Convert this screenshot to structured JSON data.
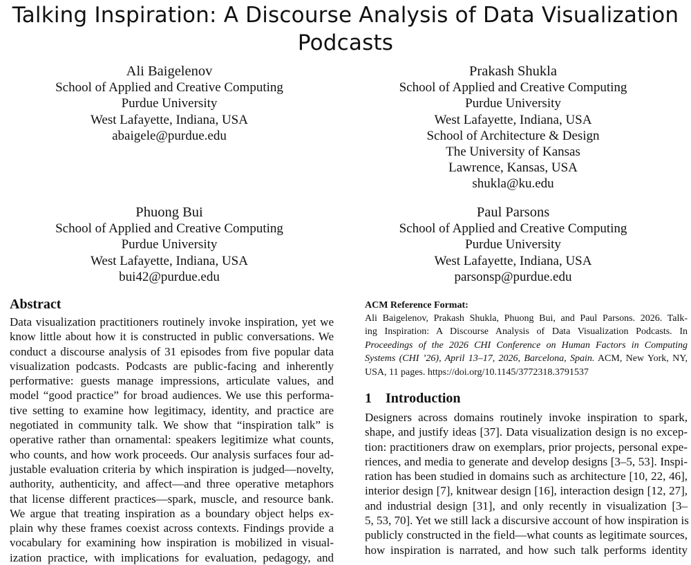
{
  "title": {
    "line1": "Talking Inspiration: A Discourse Analysis of Data Visualization",
    "line2": "Podcasts"
  },
  "authors": [
    {
      "name": "Ali Baigelenov",
      "lines": [
        "School of Applied and Creative Computing",
        "Purdue University",
        "West Lafayette, Indiana, USA",
        "abaigele@purdue.edu"
      ]
    },
    {
      "name": "Prakash Shukla",
      "lines": [
        "School of Applied and Creative Computing",
        "Purdue University",
        "West Lafayette, Indiana, USA",
        "School of Architecture & Design",
        "The University of Kansas",
        "Lawrence, Kansas, USA",
        "shukla@ku.edu"
      ]
    },
    {
      "name": "Phuong Bui",
      "lines": [
        "School of Applied and Creative Computing",
        "Purdue University",
        "West Lafayette, Indiana, USA",
        "bui42@purdue.edu"
      ]
    },
    {
      "name": "Paul Parsons",
      "lines": [
        "School of Applied and Creative Computing",
        "Purdue University",
        "West Lafayette, Indiana, USA",
        "parsonsp@purdue.edu"
      ]
    }
  ],
  "abstract": {
    "heading": "Abstract",
    "lines": [
      "Data visualization practitioners routinely invoke inspiration, yet we",
      "know little about how it is constructed in public conversations. We",
      "conduct a discourse analysis of 31 episodes from five popular data",
      "visualization podcasts. Podcasts are public-facing and inherently",
      "performative: guests manage impressions, articulate values, and",
      "model “good practice” for broad audiences. We use this performa-",
      "tive setting to examine how legitimacy, identity, and practice are",
      "negotiated in community talk. We show that “inspiration talk” is",
      "operative rather than ornamental: speakers legitimize what counts,",
      "who counts, and how work proceeds. Our analysis surfaces four ad-",
      "justable evaluation criteria by which inspiration is judged—novelty,",
      "authority, authenticity, and affect—and three operative metaphors",
      "that license different practices—spark, muscle, and resource bank.",
      "We argue that treating inspiration as a boundary object helps ex-",
      "plain why these frames coexist across contexts. Findings provide a",
      "vocabulary for examining how inspiration is mobilized in visual-",
      "ization practice, with implications for evaluation, pedagogy, and"
    ]
  },
  "reference": {
    "heading": "ACM Reference Format:",
    "line1": "Ali Baigelenov, Prakash Shukla, Phuong Bui, and Paul Parsons. 2026. Talk-",
    "line2": "ing Inspiration: A Discourse Analysis of Data Visualization Podcasts. In",
    "line3": "Proceedings of the 2026 CHI Conference on Human Factors in Computing",
    "line4_italic": "Systems (CHI ’26), April 13–17, 2026, Barcelona, Spain.",
    "line4_rest": " ACM, New York, NY,",
    "line5": "USA, 11 pages. https://doi.org/10.1145/3772318.3791537"
  },
  "introduction": {
    "number": "1",
    "heading": "Introduction",
    "lines": [
      "Designers across domains routinely invoke inspiration to spark,",
      "shape, and justify ideas [37]. Data visualization design is no excep-",
      "tion: practitioners draw on exemplars, prior projects, personal expe-",
      "riences, and media to generate and develop designs [3–5, 53]. Inspi-",
      "ration has been studied in domains such as architecture [10, 22, 46],",
      "interior design [7], knitwear design [16], interaction design [12, 27],",
      "and industrial design [31], and only recently in visualization [3–",
      "5, 53, 70]. Yet we still lack a discursive account of how inspiration is",
      "publicly constructed in the field—what counts as legitimate sources,",
      "how inspiration is narrated, and how such talk performs identity"
    ]
  }
}
